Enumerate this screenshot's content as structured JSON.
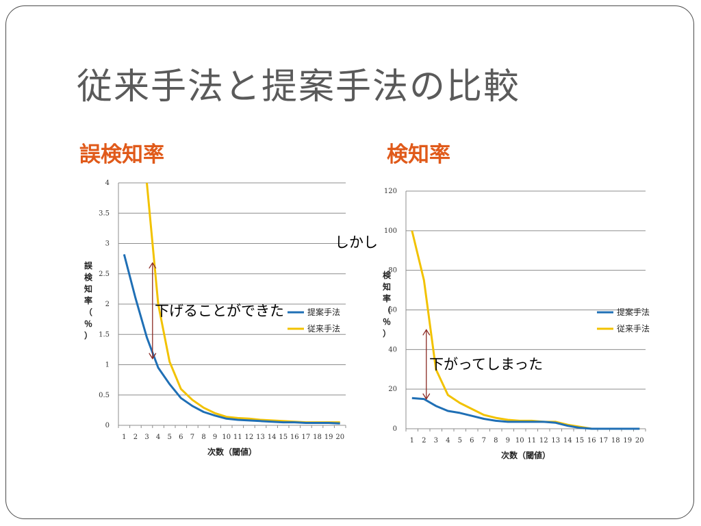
{
  "slide": {
    "title": "従来手法と提案手法の比較",
    "note_middle": "しかし"
  },
  "colors": {
    "proposed": "#1f6fb5",
    "conventional": "#f2c200",
    "arrow": "#8b2a24",
    "heading": "#e05a1a"
  },
  "chart_data": [
    {
      "type": "line",
      "title": "誤検知率",
      "xlabel": "次数（閾値）",
      "ylabel": "誤検知率（％）",
      "x": [
        1,
        2,
        3,
        4,
        5,
        6,
        7,
        8,
        9,
        10,
        11,
        12,
        13,
        14,
        15,
        16,
        17,
        18,
        19,
        20
      ],
      "ylim": [
        0,
        4
      ],
      "yticks": [
        0,
        0.5,
        1,
        1.5,
        2,
        2.5,
        3,
        3.5,
        4
      ],
      "grid": true,
      "legend": "right",
      "series": [
        {
          "name": "提案手法",
          "values": [
            2.82,
            2.1,
            1.45,
            0.95,
            0.68,
            0.45,
            0.32,
            0.22,
            0.16,
            0.11,
            0.09,
            0.08,
            0.07,
            0.06,
            0.05,
            0.05,
            0.04,
            0.04,
            0.04,
            0.03
          ]
        },
        {
          "name": "従来手法",
          "values": [
            null,
            null,
            4.0,
            2.0,
            1.05,
            0.6,
            0.42,
            0.29,
            0.2,
            0.14,
            0.12,
            0.11,
            0.09,
            0.08,
            0.07,
            0.06,
            0.05,
            0.05,
            0.05,
            0.05
          ]
        }
      ],
      "annotation": {
        "text": "下げることができた",
        "arrow_x": 3.5,
        "arrow_from": 1.1,
        "arrow_to": 2.68
      }
    },
    {
      "type": "line",
      "title": "検知率",
      "xlabel": "次数（閾値）",
      "ylabel": "検知率（％）",
      "x": [
        1,
        2,
        3,
        4,
        5,
        6,
        7,
        8,
        9,
        10,
        11,
        12,
        13,
        14,
        15,
        16,
        17,
        18,
        19,
        20
      ],
      "ylim": [
        0,
        120
      ],
      "yticks": [
        0,
        20,
        40,
        60,
        80,
        100,
        120
      ],
      "grid": true,
      "legend": "right",
      "series": [
        {
          "name": "提案手法",
          "values": [
            15.5,
            15.0,
            11.5,
            9.0,
            8.0,
            6.5,
            5.0,
            4.0,
            3.5,
            3.5,
            3.5,
            3.5,
            3.0,
            1.5,
            0.5,
            0,
            0,
            0,
            0,
            0
          ]
        },
        {
          "name": "従来手法",
          "values": [
            100,
            75,
            30,
            17,
            13,
            10,
            7,
            5.5,
            4.5,
            4,
            4,
            3.5,
            3.5,
            2,
            1,
            0,
            0,
            0,
            0,
            0
          ]
        }
      ],
      "annotation": {
        "text": "下がってしまった",
        "arrow_x": 2.2,
        "arrow_from": 15,
        "arrow_to": 50
      }
    }
  ]
}
